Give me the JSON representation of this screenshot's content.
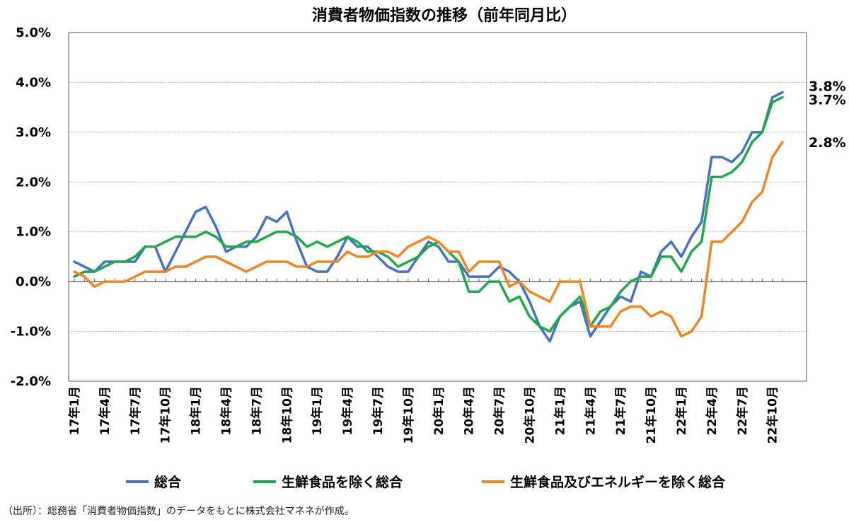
{
  "source_note": "（出所）：総務省「消費者物価指数」のデータをもとに株式会社マネネが作成。",
  "colors": {
    "sogo": "#4472C4",
    "core": "#1DA84A",
    "corecore": "#F28423",
    "grid": "#9a9a9a",
    "axis": "#555555"
  },
  "chart_data": {
    "type": "line",
    "title": "消費者物価指数の推移（前年同月比）",
    "xlabel": "",
    "ylabel": "",
    "ylim": [
      -2.0,
      5.0
    ],
    "yticks": [
      "5.0%",
      "4.0%",
      "3.0%",
      "2.0%",
      "1.0%",
      "0.0%",
      "-1.0%",
      "-2.0%"
    ],
    "ytick_values": [
      5,
      4,
      3,
      2,
      1,
      0,
      -1,
      -2
    ],
    "x_start": "2017-01",
    "xtick_labels": [
      "17年1月",
      "17年4月",
      "17年7月",
      "17年10月",
      "18年1月",
      "18年4月",
      "18年7月",
      "18年10月",
      "19年1月",
      "19年4月",
      "19年7月",
      "19年10月",
      "20年1月",
      "20年4月",
      "20年7月",
      "20年10月",
      "21年1月",
      "21年4月",
      "21年7月",
      "21年10月",
      "22年1月",
      "22年4月",
      "22年7月",
      "22年10月"
    ],
    "grid": "horizontal dotted",
    "legend_position": "bottom",
    "series": [
      {
        "name": "総合",
        "color_key": "sogo",
        "end_label": "3.8%",
        "values": [
          0.4,
          0.3,
          0.2,
          0.4,
          0.4,
          0.4,
          0.4,
          0.7,
          0.7,
          0.2,
          0.6,
          1.0,
          1.4,
          1.5,
          1.1,
          0.6,
          0.7,
          0.7,
          0.9,
          1.3,
          1.2,
          1.4,
          0.8,
          0.3,
          0.2,
          0.2,
          0.5,
          0.9,
          0.7,
          0.7,
          0.5,
          0.3,
          0.2,
          0.2,
          0.5,
          0.8,
          0.7,
          0.4,
          0.4,
          0.1,
          0.1,
          0.1,
          0.3,
          0.2,
          0.0,
          -0.4,
          -0.9,
          -1.2,
          -0.7,
          -0.5,
          -0.4,
          -1.1,
          -0.8,
          -0.5,
          -0.3,
          -0.4,
          0.2,
          0.1,
          0.6,
          0.8,
          0.5,
          0.9,
          1.2,
          2.5,
          2.5,
          2.4,
          2.6,
          3.0,
          3.0,
          3.7,
          3.8
        ]
      },
      {
        "name": "生鮮食品を除く総合",
        "color_key": "core",
        "end_label": "3.7%",
        "values": [
          0.1,
          0.2,
          0.2,
          0.3,
          0.4,
          0.4,
          0.5,
          0.7,
          0.7,
          0.8,
          0.9,
          0.9,
          0.9,
          1.0,
          0.9,
          0.7,
          0.7,
          0.8,
          0.8,
          0.9,
          1.0,
          1.0,
          0.9,
          0.7,
          0.8,
          0.7,
          0.8,
          0.9,
          0.8,
          0.6,
          0.6,
          0.5,
          0.3,
          0.4,
          0.5,
          0.7,
          0.8,
          0.6,
          0.4,
          -0.2,
          -0.2,
          0.0,
          0.0,
          -0.4,
          -0.3,
          -0.7,
          -0.9,
          -1.0,
          -0.7,
          -0.5,
          -0.3,
          -0.9,
          -0.6,
          -0.5,
          -0.2,
          0.0,
          0.1,
          0.1,
          0.5,
          0.5,
          0.2,
          0.6,
          0.8,
          2.1,
          2.1,
          2.2,
          2.4,
          2.8,
          3.0,
          3.6,
          3.7
        ]
      },
      {
        "name": "生鮮食品及びエネルギーを除く総合",
        "color_key": "corecore",
        "end_label": "2.8%",
        "values": [
          0.2,
          0.1,
          -0.1,
          0.0,
          0.0,
          0.0,
          0.1,
          0.2,
          0.2,
          0.2,
          0.3,
          0.3,
          0.4,
          0.5,
          0.5,
          0.4,
          0.3,
          0.2,
          0.3,
          0.4,
          0.4,
          0.4,
          0.3,
          0.3,
          0.4,
          0.4,
          0.4,
          0.6,
          0.5,
          0.5,
          0.6,
          0.6,
          0.5,
          0.7,
          0.8,
          0.9,
          0.8,
          0.6,
          0.6,
          0.2,
          0.4,
          0.4,
          0.4,
          -0.1,
          0.0,
          -0.2,
          -0.3,
          -0.4,
          0.0,
          0.0,
          0.0,
          -0.9,
          -0.9,
          -0.9,
          -0.6,
          -0.5,
          -0.5,
          -0.7,
          -0.6,
          -0.7,
          -1.1,
          -1.0,
          -0.7,
          0.8,
          0.8,
          1.0,
          1.2,
          1.6,
          1.8,
          2.5,
          2.8
        ]
      }
    ]
  }
}
